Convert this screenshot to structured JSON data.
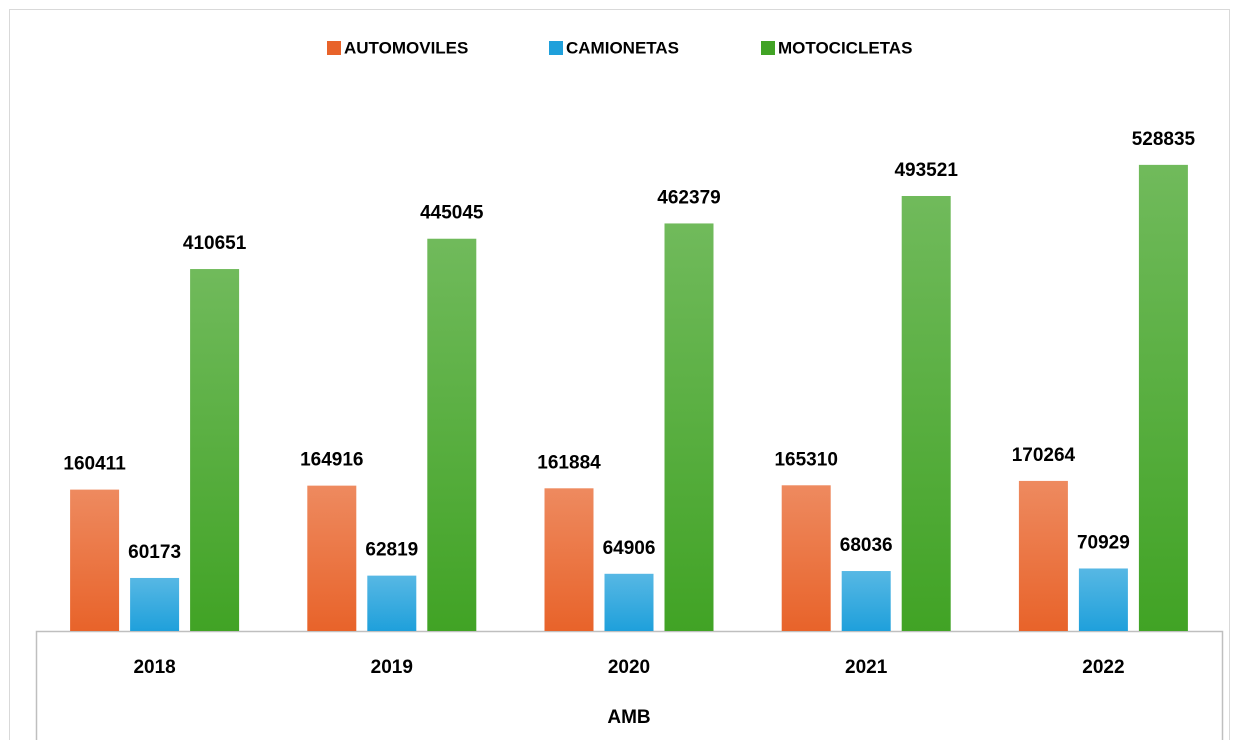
{
  "chart_data": {
    "type": "bar",
    "categories": [
      "2018",
      "2019",
      "2020",
      "2021",
      "2022"
    ],
    "x_label": "AMB",
    "series": [
      {
        "name": "AUTOMOVILES",
        "color": "#e8632a",
        "values": [
          160411,
          164916,
          161884,
          165310,
          170264
        ]
      },
      {
        "name": "CAMIONETAS",
        "color": "#1fa0db",
        "values": [
          60173,
          62819,
          64906,
          68036,
          70929
        ]
      },
      {
        "name": "MOTOCICLETAS",
        "color": "#41a325",
        "values": [
          410651,
          445045,
          462379,
          493521,
          528835
        ]
      }
    ],
    "ylim": [
      0,
      700000
    ],
    "legend": "top"
  }
}
